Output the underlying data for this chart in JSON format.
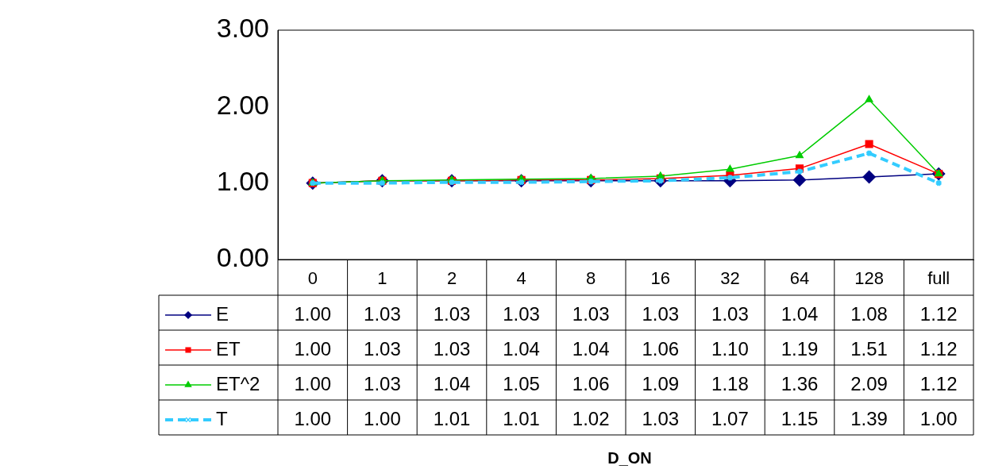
{
  "chart_data": {
    "type": "line",
    "annotations": [
      "D_ON"
    ],
    "categories": [
      "0",
      "1",
      "2",
      "4",
      "8",
      "16",
      "32",
      "64",
      "128",
      "full"
    ],
    "series": [
      {
        "name": "E",
        "color": "#000080",
        "marker": "diamond",
        "values": [
          1.0,
          1.03,
          1.03,
          1.03,
          1.03,
          1.03,
          1.03,
          1.04,
          1.08,
          1.12
        ],
        "value_labels": [
          "1.00",
          "1.03",
          "1.03",
          "1.03",
          "1.03",
          "1.03",
          "1.03",
          "1.04",
          "1.08",
          "1.12"
        ]
      },
      {
        "name": "ET",
        "color": "#ff0000",
        "marker": "square",
        "values": [
          1.0,
          1.03,
          1.03,
          1.04,
          1.04,
          1.06,
          1.1,
          1.19,
          1.51,
          1.12
        ],
        "value_labels": [
          "1.00",
          "1.03",
          "1.03",
          "1.04",
          "1.04",
          "1.06",
          "1.10",
          "1.19",
          "1.51",
          "1.12"
        ]
      },
      {
        "name": "ET^2",
        "color": "#00cc00",
        "marker": "triangle",
        "values": [
          1.0,
          1.03,
          1.04,
          1.05,
          1.06,
          1.09,
          1.18,
          1.36,
          2.09,
          1.12
        ],
        "value_labels": [
          "1.00",
          "1.03",
          "1.04",
          "1.05",
          "1.06",
          "1.09",
          "1.18",
          "1.36",
          "2.09",
          "1.12"
        ]
      },
      {
        "name": "T",
        "color": "#33ccff",
        "marker": "cross",
        "line_style": "dashed",
        "values": [
          1.0,
          1.0,
          1.01,
          1.01,
          1.02,
          1.03,
          1.07,
          1.15,
          1.39,
          1.0
        ],
        "value_labels": [
          "1.00",
          "1.00",
          "1.01",
          "1.01",
          "1.02",
          "1.03",
          "1.07",
          "1.15",
          "1.39",
          "1.00"
        ]
      }
    ],
    "ylim": [
      0,
      3
    ],
    "yticks": [
      {
        "value": 0,
        "label": "0.00"
      },
      {
        "value": 1,
        "label": "1.00"
      },
      {
        "value": 2,
        "label": "2.00"
      },
      {
        "value": 3,
        "label": "3.00"
      }
    ],
    "grid": false,
    "legend": "bottom"
  }
}
